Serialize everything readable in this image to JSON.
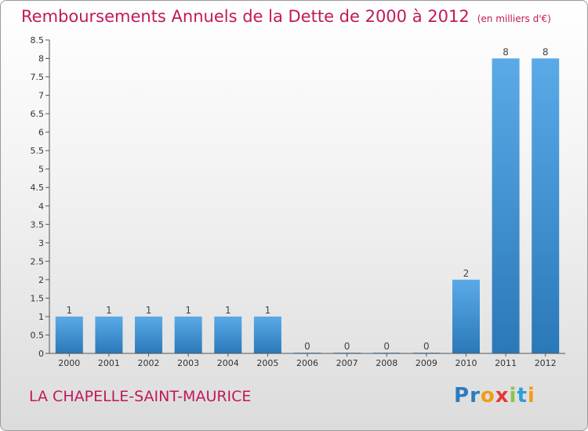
{
  "header": {
    "title": "Remboursements Annuels de la Dette de 2000 à 2012",
    "unit": "(en milliers d'€)"
  },
  "footer": {
    "commune": "LA CHAPELLE-SAINT-MAURICE",
    "logo_letters": [
      "P",
      "r",
      "o",
      "x",
      "i",
      "t",
      "i"
    ]
  },
  "colors": {
    "title": "#c2185b",
    "bar_top": "#5aaae8",
    "bar_bottom": "#2a78b8"
  },
  "chart_data": {
    "type": "bar",
    "title": "Remboursements Annuels de la Dette de 2000 à 2012",
    "xlabel": "",
    "ylabel": "",
    "categories": [
      "2000",
      "2001",
      "2002",
      "2003",
      "2004",
      "2005",
      "2006",
      "2007",
      "2008",
      "2009",
      "2010",
      "2011",
      "2012"
    ],
    "values": [
      1,
      1,
      1,
      1,
      1,
      1,
      0,
      0,
      0,
      0,
      2,
      8,
      8
    ],
    "data_labels": [
      "1",
      "1",
      "1",
      "1",
      "1",
      "1",
      "0",
      "0",
      "0",
      "0",
      "2",
      "8",
      "8"
    ],
    "ylim": [
      0,
      8.5
    ],
    "yticks": [
      "0",
      "0.5",
      "1",
      "1.5",
      "2",
      "2.5",
      "3",
      "3.5",
      "4",
      "4.5",
      "5",
      "5.5",
      "6",
      "6.5",
      "7",
      "7.5",
      "8",
      "8.5"
    ],
    "grid": false,
    "legend": "none"
  }
}
